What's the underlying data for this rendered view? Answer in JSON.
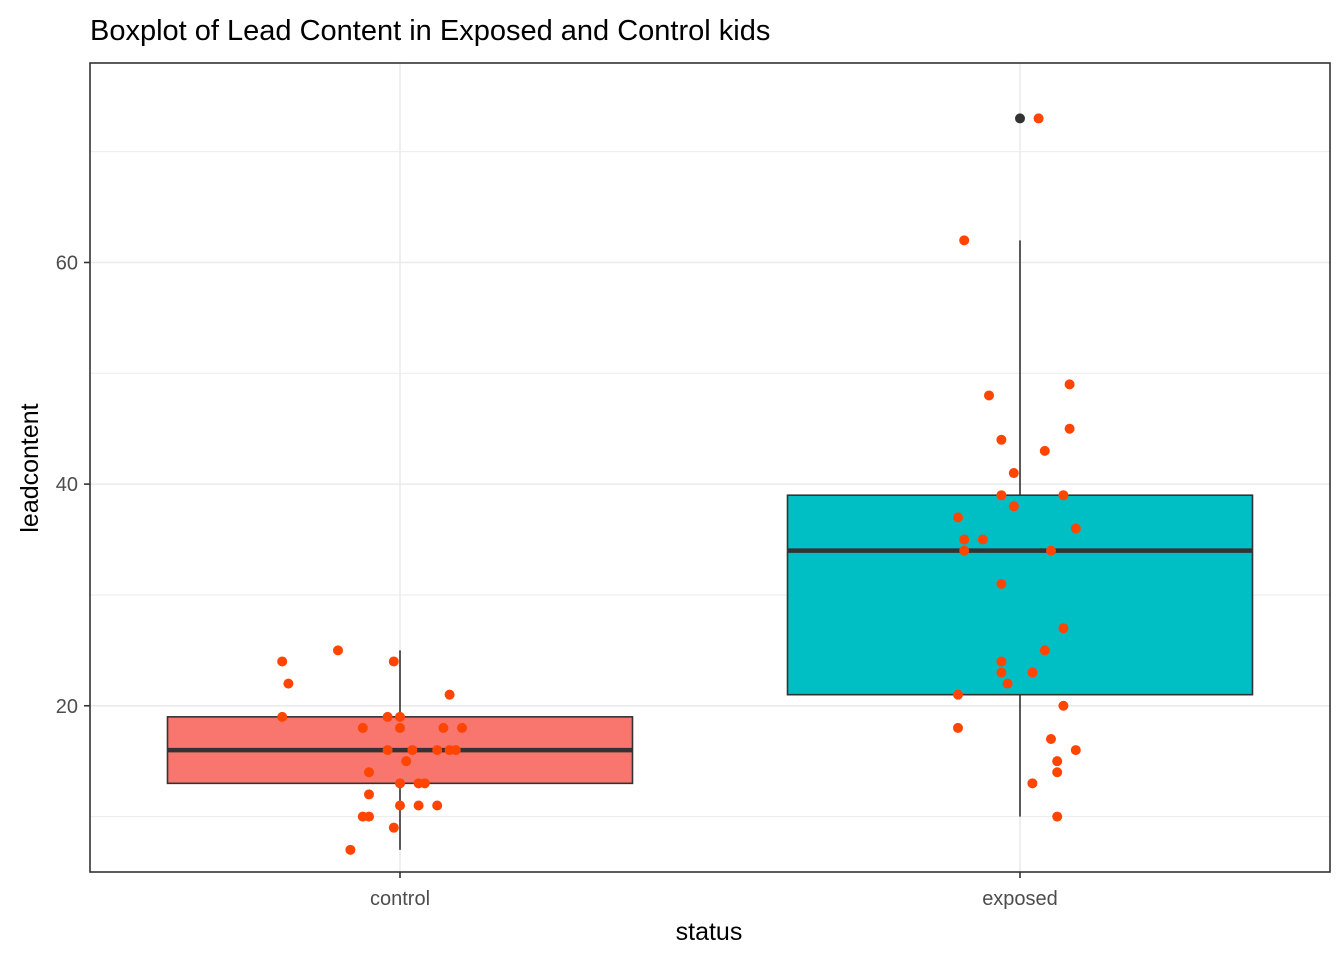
{
  "chart_data": {
    "type": "boxplot",
    "title": "Boxplot of Lead Content in Exposed and Control kids",
    "xlabel": "status",
    "ylabel": "leadcontent",
    "categories": [
      "control",
      "exposed"
    ],
    "ylim": [
      5,
      78
    ],
    "yticks": [
      20,
      40,
      60
    ],
    "grid": true,
    "colors": {
      "control_fill": "#F8766D",
      "exposed_fill": "#00BFC4",
      "points": "#FF4500",
      "outlier": "#333333",
      "box_line": "#333333",
      "grid": "#ebebeb",
      "border": "#333333"
    },
    "boxes": [
      {
        "category": "control",
        "q1": 13,
        "median": 16,
        "q3": 19,
        "whisker_low": 7,
        "whisker_high": 25,
        "outliers": []
      },
      {
        "category": "exposed",
        "q1": 21,
        "median": 34,
        "q3": 39,
        "whisker_low": 10,
        "whisker_high": 62,
        "outliers": [
          73
        ]
      }
    ],
    "points": {
      "control": [
        {
          "x": -0.1,
          "y": 25
        },
        {
          "x": -0.19,
          "y": 24
        },
        {
          "x": -0.01,
          "y": 24
        },
        {
          "x": -0.18,
          "y": 22
        },
        {
          "x": 0.08,
          "y": 21
        },
        {
          "x": -0.02,
          "y": 19
        },
        {
          "x": 0.0,
          "y": 19
        },
        {
          "x": -0.19,
          "y": 19
        },
        {
          "x": -0.06,
          "y": 18
        },
        {
          "x": 0.0,
          "y": 18
        },
        {
          "x": 0.07,
          "y": 18
        },
        {
          "x": 0.1,
          "y": 18
        },
        {
          "x": -0.02,
          "y": 16
        },
        {
          "x": 0.02,
          "y": 16
        },
        {
          "x": 0.06,
          "y": 16
        },
        {
          "x": 0.08,
          "y": 16
        },
        {
          "x": 0.09,
          "y": 16
        },
        {
          "x": 0.01,
          "y": 15
        },
        {
          "x": -0.05,
          "y": 14
        },
        {
          "x": 0.0,
          "y": 13
        },
        {
          "x": 0.03,
          "y": 13
        },
        {
          "x": 0.04,
          "y": 13
        },
        {
          "x": -0.05,
          "y": 12
        },
        {
          "x": 0.0,
          "y": 11
        },
        {
          "x": 0.03,
          "y": 11
        },
        {
          "x": 0.06,
          "y": 11
        },
        {
          "x": -0.06,
          "y": 10
        },
        {
          "x": -0.05,
          "y": 10
        },
        {
          "x": -0.01,
          "y": 9
        },
        {
          "x": -0.08,
          "y": 7
        }
      ],
      "exposed": [
        {
          "x": 0.03,
          "y": 73
        },
        {
          "x": -0.09,
          "y": 62
        },
        {
          "x": 0.08,
          "y": 49
        },
        {
          "x": -0.05,
          "y": 48
        },
        {
          "x": 0.08,
          "y": 45
        },
        {
          "x": -0.03,
          "y": 44
        },
        {
          "x": 0.04,
          "y": 43
        },
        {
          "x": -0.01,
          "y": 41
        },
        {
          "x": -0.03,
          "y": 39
        },
        {
          "x": 0.07,
          "y": 39
        },
        {
          "x": -0.01,
          "y": 38
        },
        {
          "x": -0.1,
          "y": 37
        },
        {
          "x": 0.09,
          "y": 36
        },
        {
          "x": -0.09,
          "y": 35
        },
        {
          "x": -0.06,
          "y": 35
        },
        {
          "x": -0.09,
          "y": 34
        },
        {
          "x": 0.05,
          "y": 34
        },
        {
          "x": -0.03,
          "y": 31
        },
        {
          "x": 0.07,
          "y": 27
        },
        {
          "x": 0.04,
          "y": 25
        },
        {
          "x": -0.03,
          "y": 24
        },
        {
          "x": -0.03,
          "y": 23
        },
        {
          "x": 0.02,
          "y": 23
        },
        {
          "x": -0.02,
          "y": 22
        },
        {
          "x": -0.1,
          "y": 21
        },
        {
          "x": 0.07,
          "y": 20
        },
        {
          "x": -0.1,
          "y": 18
        },
        {
          "x": 0.05,
          "y": 17
        },
        {
          "x": 0.09,
          "y": 16
        },
        {
          "x": 0.06,
          "y": 15
        },
        {
          "x": 0.06,
          "y": 14
        },
        {
          "x": 0.02,
          "y": 13
        },
        {
          "x": 0.06,
          "y": 10
        }
      ]
    }
  }
}
